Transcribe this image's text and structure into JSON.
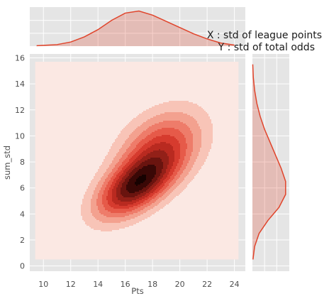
{
  "chart_data": {
    "type": "kde_joint",
    "xlabel": "Pts",
    "ylabel": "sum_std",
    "xlim": [
      9,
      24.8
    ],
    "ylim": [
      -0.4,
      16.3
    ],
    "xticks": [
      10,
      12,
      14,
      16,
      18,
      20,
      22,
      24
    ],
    "yticks": [
      0,
      2,
      4,
      6,
      8,
      10,
      12,
      14,
      16
    ],
    "annotation_lines": [
      "X : std of league points",
      "Y : std of total odds"
    ],
    "grid": true,
    "background_color": "#e5e5e5",
    "fill_region": {
      "x": [
        9.4,
        24.3
      ],
      "y": [
        0.5,
        15.7
      ]
    },
    "kde_components": [
      {
        "mean": [
          16.7,
          6.1
        ],
        "sd": [
          1.9,
          1.65
        ],
        "rho": 0.55,
        "weight": 0.62
      },
      {
        "mean": [
          18.6,
          9.1
        ],
        "sd": [
          2.1,
          2.0
        ],
        "rho": 0.35,
        "weight": 0.38
      }
    ],
    "contour_levels": 10,
    "contour_colors": [
      "#fbe8e3",
      "#f8c4b7",
      "#f3a18f",
      "#ee7c6a",
      "#e65a49",
      "#d63b2e",
      "#b92a20",
      "#932018",
      "#6a140f",
      "#3a0806",
      "#170201"
    ],
    "x_marginal": {
      "x": [
        9.5,
        11,
        12,
        13,
        14,
        15,
        16,
        17,
        18,
        19,
        20,
        21,
        22,
        23,
        24
      ],
      "density": [
        0.004,
        0.015,
        0.04,
        0.09,
        0.16,
        0.25,
        0.32,
        0.34,
        0.3,
        0.24,
        0.18,
        0.12,
        0.07,
        0.03,
        0.01
      ]
    },
    "y_marginal": {
      "y": [
        0.5,
        1.5,
        2.5,
        3.5,
        4.5,
        5.5,
        6.5,
        7.5,
        8.5,
        9.5,
        10.5,
        11.5,
        12.5,
        13.5,
        14.5,
        15.5
      ],
      "density": [
        0.005,
        0.02,
        0.06,
        0.14,
        0.24,
        0.3,
        0.3,
        0.26,
        0.21,
        0.16,
        0.11,
        0.07,
        0.04,
        0.02,
        0.008,
        0.003
      ]
    },
    "line_color": "#e0442b",
    "marginal_fill_color": "#e0442b"
  }
}
